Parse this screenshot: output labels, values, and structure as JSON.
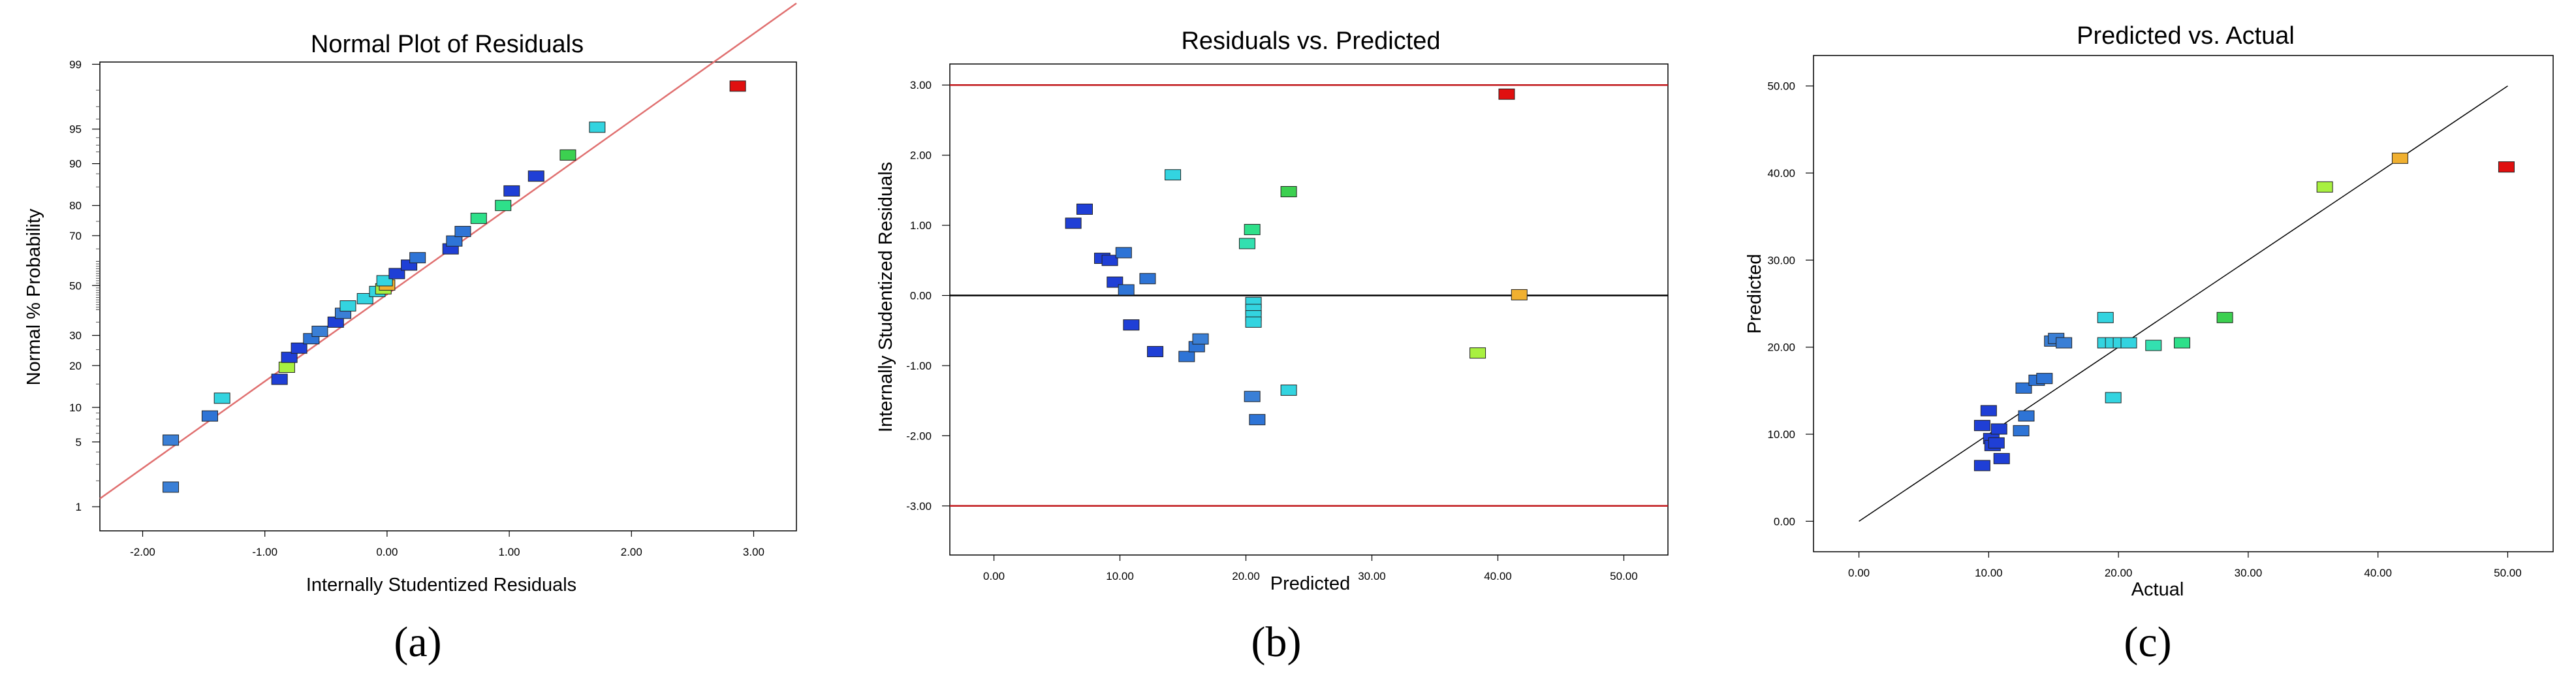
{
  "chart_data": [
    {
      "type": "scatter",
      "title": "Normal Plot of Residuals",
      "xlabel": "Internally Studentized Residuals",
      "ylabel": "Normal % Probability",
      "panel_label": "(a)",
      "xlim": [
        -2.35,
        3.35
      ],
      "x_ticks": [
        "-2.00",
        "-1.00",
        "0.00",
        "1.00",
        "2.00",
        "3.00"
      ],
      "x_tick_values": [
        -2,
        -1,
        0,
        1,
        2,
        3
      ],
      "y_ticks": [
        "1",
        "5",
        "10",
        "20",
        "30",
        "50",
        "70",
        "80",
        "90",
        "95",
        "99"
      ],
      "y_tick_values": [
        1,
        5,
        10,
        20,
        30,
        50,
        70,
        80,
        90,
        95,
        99
      ],
      "y_scale": "normal-probability",
      "reference_line": {
        "from": [
          -2.35,
          1.25
        ],
        "to": [
          3.35,
          99.85
        ],
        "color": "#e07070"
      },
      "points": [
        {
          "x": -1.77,
          "y": 1.7,
          "color": "#3a7fd6"
        },
        {
          "x": -1.77,
          "y": 5.2,
          "color": "#3a7fd6"
        },
        {
          "x": -1.45,
          "y": 8.5,
          "color": "#2e74d6"
        },
        {
          "x": -1.35,
          "y": 11.8,
          "color": "#33d4e0"
        },
        {
          "x": -0.88,
          "y": 16.2,
          "color": "#1f3fd6"
        },
        {
          "x": -0.82,
          "y": 19.5,
          "color": "#a8f040"
        },
        {
          "x": -0.8,
          "y": 22.5,
          "color": "#1f3fd6"
        },
        {
          "x": -0.72,
          "y": 25.5,
          "color": "#1f3fd6"
        },
        {
          "x": -0.62,
          "y": 28.8,
          "color": "#2e74d6"
        },
        {
          "x": -0.55,
          "y": 31.5,
          "color": "#3a7fd6"
        },
        {
          "x": -0.42,
          "y": 35.0,
          "color": "#1f3fd6"
        },
        {
          "x": -0.36,
          "y": 38.5,
          "color": "#3a7fd6"
        },
        {
          "x": -0.32,
          "y": 41.5,
          "color": "#33d4e0"
        },
        {
          "x": -0.18,
          "y": 44.5,
          "color": "#33d4e0"
        },
        {
          "x": -0.08,
          "y": 47.5,
          "color": "#33d4e0"
        },
        {
          "x": -0.03,
          "y": 48.6,
          "color": "#a8f040"
        },
        {
          "x": 0.0,
          "y": 50.2,
          "color": "#f0b030"
        },
        {
          "x": -0.02,
          "y": 52.0,
          "color": "#33d4e0"
        },
        {
          "x": 0.08,
          "y": 55.0,
          "color": "#1f3fd6"
        },
        {
          "x": 0.18,
          "y": 58.5,
          "color": "#1f3fd6"
        },
        {
          "x": 0.25,
          "y": 61.5,
          "color": "#2e74d6"
        },
        {
          "x": 0.52,
          "y": 65.0,
          "color": "#1f3fd6"
        },
        {
          "x": 0.55,
          "y": 68.0,
          "color": "#2e74d6"
        },
        {
          "x": 0.62,
          "y": 71.5,
          "color": "#2e74d6"
        },
        {
          "x": 0.75,
          "y": 76.0,
          "color": "#2ee08a"
        },
        {
          "x": 0.95,
          "y": 80.0,
          "color": "#2ee08a"
        },
        {
          "x": 1.02,
          "y": 84.0,
          "color": "#1f3fd6"
        },
        {
          "x": 1.22,
          "y": 87.5,
          "color": "#1f3fd6"
        },
        {
          "x": 1.48,
          "y": 91.5,
          "color": "#3cd050"
        },
        {
          "x": 1.72,
          "y": 95.2,
          "color": "#33d4e0"
        },
        {
          "x": 2.87,
          "y": 98.2,
          "color": "#e01010"
        }
      ]
    },
    {
      "type": "scatter",
      "title": "Residuals vs. Predicted",
      "xlabel": "Predicted",
      "ylabel": "Internally Studentized Residuals",
      "panel_label": "(b)",
      "xlim": [
        -3.5,
        53.5
      ],
      "ylim": [
        -3.7,
        3.3
      ],
      "x_ticks": [
        "0.00",
        "10.00",
        "20.00",
        "30.00",
        "40.00",
        "50.00"
      ],
      "x_tick_values": [
        0,
        10,
        20,
        30,
        40,
        50
      ],
      "y_ticks": [
        "-3.00",
        "-2.00",
        "-1.00",
        "0.00",
        "1.00",
        "2.00",
        "3.00"
      ],
      "y_tick_values": [
        -3,
        -2,
        -1,
        0,
        1,
        2,
        3
      ],
      "limit_lines": [
        {
          "y": 3.0,
          "color": "#c0171b"
        },
        {
          "y": -3.0,
          "color": "#c0171b"
        },
        {
          "y": 0.0,
          "color": "#000000"
        }
      ],
      "points": [
        {
          "x": 6.3,
          "y": 1.03,
          "color": "#1f3fd6"
        },
        {
          "x": 7.2,
          "y": 1.23,
          "color": "#1f3fd6"
        },
        {
          "x": 8.6,
          "y": 0.53,
          "color": "#1f3fd6"
        },
        {
          "x": 9.2,
          "y": 0.5,
          "color": "#1f3fd6"
        },
        {
          "x": 9.6,
          "y": 0.19,
          "color": "#1f3fd6"
        },
        {
          "x": 10.3,
          "y": 0.61,
          "color": "#2e74d6"
        },
        {
          "x": 10.5,
          "y": 0.08,
          "color": "#2e74d6"
        },
        {
          "x": 10.9,
          "y": -0.42,
          "color": "#1f3fd6"
        },
        {
          "x": 12.2,
          "y": 0.24,
          "color": "#2e74d6"
        },
        {
          "x": 12.8,
          "y": -0.8,
          "color": "#1f3fd6"
        },
        {
          "x": 14.2,
          "y": 1.72,
          "color": "#33d4e0"
        },
        {
          "x": 15.3,
          "y": -0.87,
          "color": "#2e74d6"
        },
        {
          "x": 16.1,
          "y": -0.73,
          "color": "#2e74d6"
        },
        {
          "x": 16.4,
          "y": -0.62,
          "color": "#3a7fd6"
        },
        {
          "x": 20.1,
          "y": 0.74,
          "color": "#33e0b0"
        },
        {
          "x": 20.5,
          "y": 0.94,
          "color": "#2ee08a"
        },
        {
          "x": 20.6,
          "y": -0.1,
          "color": "#33d4e0"
        },
        {
          "x": 20.6,
          "y": -0.2,
          "color": "#33d4e0"
        },
        {
          "x": 20.6,
          "y": -0.29,
          "color": "#33d4e0"
        },
        {
          "x": 20.6,
          "y": -0.38,
          "color": "#33d4e0"
        },
        {
          "x": 20.5,
          "y": -1.44,
          "color": "#3a7fd6"
        },
        {
          "x": 20.9,
          "y": -1.77,
          "color": "#2e74d6"
        },
        {
          "x": 23.4,
          "y": 1.48,
          "color": "#3cd050"
        },
        {
          "x": 23.4,
          "y": -1.35,
          "color": "#33d4e0"
        },
        {
          "x": 38.4,
          "y": -0.82,
          "color": "#a8f040"
        },
        {
          "x": 40.7,
          "y": 2.87,
          "color": "#e01010"
        },
        {
          "x": 41.7,
          "y": 0.01,
          "color": "#f0b030"
        }
      ]
    },
    {
      "type": "scatter",
      "title": "Predicted vs. Actual",
      "xlabel": "Actual",
      "ylabel": "Predicted",
      "panel_label": "(c)",
      "xlim": [
        -3.5,
        53.5
      ],
      "ylim": [
        -3.5,
        53.5
      ],
      "x_ticks": [
        "0.00",
        "10.00",
        "20.00",
        "30.00",
        "40.00",
        "50.00"
      ],
      "x_tick_values": [
        0,
        10,
        20,
        30,
        40,
        50
      ],
      "y_ticks": [
        "0.00",
        "10.00",
        "20.00",
        "30.00",
        "40.00",
        "50.00"
      ],
      "y_tick_values": [
        0,
        10,
        20,
        30,
        40,
        50
      ],
      "reference_line": {
        "from": [
          0,
          0
        ],
        "to": [
          50,
          50
        ],
        "color": "#000000"
      },
      "points": [
        {
          "x": 9.5,
          "y": 6.4,
          "color": "#1f3fd6"
        },
        {
          "x": 9.5,
          "y": 11.0,
          "color": "#1f3fd6"
        },
        {
          "x": 10.0,
          "y": 12.7,
          "color": "#1f3fd6"
        },
        {
          "x": 10.2,
          "y": 9.5,
          "color": "#1f3fd6"
        },
        {
          "x": 10.3,
          "y": 8.7,
          "color": "#1f3fd6"
        },
        {
          "x": 10.6,
          "y": 9.0,
          "color": "#1f3fd6"
        },
        {
          "x": 10.8,
          "y": 10.6,
          "color": "#1f3fd6"
        },
        {
          "x": 11.0,
          "y": 7.2,
          "color": "#1f3fd6"
        },
        {
          "x": 12.5,
          "y": 10.4,
          "color": "#2e74d6"
        },
        {
          "x": 12.7,
          "y": 15.3,
          "color": "#2e74d6"
        },
        {
          "x": 12.9,
          "y": 12.1,
          "color": "#2e74d6"
        },
        {
          "x": 13.7,
          "y": 16.2,
          "color": "#2e74d6"
        },
        {
          "x": 14.3,
          "y": 16.4,
          "color": "#2e74d6"
        },
        {
          "x": 14.9,
          "y": 20.7,
          "color": "#3a7fd6"
        },
        {
          "x": 15.2,
          "y": 21.0,
          "color": "#3a7fd6"
        },
        {
          "x": 15.8,
          "y": 20.5,
          "color": "#3a7fd6"
        },
        {
          "x": 19.0,
          "y": 23.4,
          "color": "#33d4e0"
        },
        {
          "x": 19.0,
          "y": 20.5,
          "color": "#33d4e0"
        },
        {
          "x": 19.6,
          "y": 20.5,
          "color": "#33d4e0"
        },
        {
          "x": 19.6,
          "y": 14.2,
          "color": "#33d4e0"
        },
        {
          "x": 20.2,
          "y": 20.5,
          "color": "#33d4e0"
        },
        {
          "x": 20.8,
          "y": 20.5,
          "color": "#33d4e0"
        },
        {
          "x": 22.7,
          "y": 20.2,
          "color": "#33e0b0"
        },
        {
          "x": 24.9,
          "y": 20.5,
          "color": "#2ee08a"
        },
        {
          "x": 28.2,
          "y": 23.4,
          "color": "#3cd050"
        },
        {
          "x": 35.9,
          "y": 38.4,
          "color": "#a8f040"
        },
        {
          "x": 41.7,
          "y": 41.7,
          "color": "#f0b030"
        },
        {
          "x": 49.9,
          "y": 40.7,
          "color": "#e01010"
        }
      ]
    }
  ]
}
